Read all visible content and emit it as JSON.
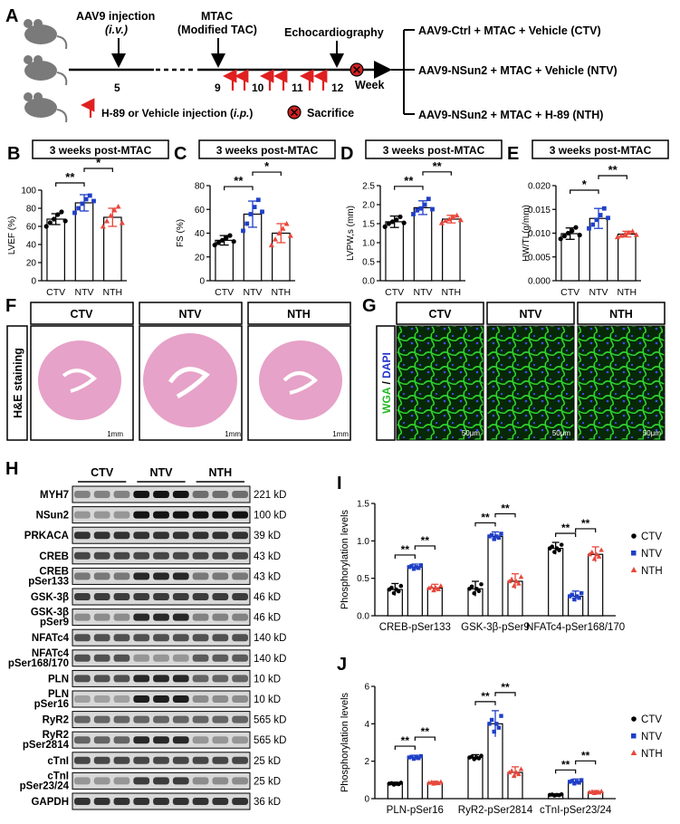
{
  "colors": {
    "ctv": "#000000",
    "ntv": "#1f3fc8",
    "nth": "#e8473b",
    "arrow_red": "#e02020",
    "wga": "#22b822",
    "dapi": "#2233cc",
    "he": "#e6a2c8"
  },
  "panelA": {
    "label": "A",
    "inj_title": "AAV9 injection",
    "inj_route": "(i.v.)",
    "mtac_title": "MTAC",
    "mtac_sub": "(Modified TAC)",
    "echo_title": "Echocardiography",
    "ticks": [
      "5",
      "9",
      "10",
      "11",
      "12"
    ],
    "week": "Week",
    "legend_h89": "H-89 or Vehicle injection (i.p.)",
    "legend_sac": "Sacrifice",
    "groups": [
      "AAV9-Ctrl + MTAC + Vehicle (CTV)",
      "AAV9-NSun2 + MTAC + Vehicle (NTV)",
      "AAV9-NSun2 + MTAC + H-89 (NTH)"
    ]
  },
  "chart_data": [
    {
      "id": "B",
      "type": "bar",
      "title": "3 weeks post-MTAC",
      "ylabel": "LVEF (%)",
      "categories": [
        "CTV",
        "NTV",
        "NTH"
      ],
      "values": [
        68,
        86,
        70
      ],
      "errors": [
        6,
        9,
        10
      ],
      "ylim": [
        0,
        100
      ],
      "yticks": [
        "0",
        "20",
        "40",
        "60",
        "80",
        "100"
      ],
      "sig": [
        "**",
        "*"
      ],
      "points": [
        [
          60,
          64,
          68,
          73,
          76,
          66
        ],
        [
          75,
          80,
          85,
          90,
          94,
          88
        ],
        [
          60,
          66,
          72,
          78,
          82,
          64
        ]
      ]
    },
    {
      "id": "C",
      "type": "bar",
      "title": "3 weeks post-MTAC",
      "ylabel": "FS (%)",
      "categories": [
        "CTV",
        "NTV",
        "NTH"
      ],
      "values": [
        34,
        56,
        40
      ],
      "errors": [
        4,
        11,
        8
      ],
      "ylim": [
        0,
        80
      ],
      "yticks": [
        "0",
        "20",
        "40",
        "60",
        "80"
      ],
      "sig": [
        "**",
        "*"
      ],
      "points": [
        [
          30,
          32,
          34,
          36,
          38,
          33
        ],
        [
          42,
          48,
          56,
          62,
          68,
          58
        ],
        [
          30,
          35,
          40,
          44,
          48,
          38
        ]
      ]
    },
    {
      "id": "D",
      "type": "bar",
      "title": "3 weeks post-MTAC",
      "ylabel": "LVPW,s (mm)",
      "categories": [
        "CTV",
        "NTV",
        "NTH"
      ],
      "values": [
        1.55,
        1.92,
        1.62
      ],
      "errors": [
        0.15,
        0.18,
        0.1
      ],
      "ylim": [
        0,
        2.5
      ],
      "yticks": [
        "0.0",
        "0.5",
        "1.0",
        "1.5",
        "2.0",
        "2.5"
      ],
      "sig": [
        "**",
        "**"
      ],
      "points": [
        [
          1.42,
          1.5,
          1.55,
          1.6,
          1.68,
          1.52
        ],
        [
          1.75,
          1.85,
          1.9,
          2.0,
          2.15,
          1.88
        ],
        [
          1.52,
          1.58,
          1.62,
          1.68,
          1.72,
          1.6
        ]
      ]
    },
    {
      "id": "E",
      "type": "bar",
      "title": "3 weeks post-MTAC",
      "ylabel": "HW/TL(g/mm)",
      "categories": [
        "CTV",
        "NTV",
        "NTH"
      ],
      "values": [
        0.0099,
        0.0131,
        0.0098
      ],
      "errors": [
        0.0012,
        0.0021,
        0.0006
      ],
      "ylim": [
        0,
        0.02
      ],
      "yticks": [
        "0.000",
        "0.005",
        "0.010",
        "0.015",
        "0.020"
      ],
      "sig": [
        "*",
        "**"
      ],
      "points": [
        [
          0.0088,
          0.0094,
          0.01,
          0.0105,
          0.0112,
          0.0096
        ],
        [
          0.011,
          0.0118,
          0.0128,
          0.0138,
          0.0152,
          0.0132
        ],
        [
          0.0092,
          0.0095,
          0.0098,
          0.0101,
          0.0104,
          0.0097
        ]
      ]
    },
    {
      "id": "I",
      "type": "bar",
      "ylabel": "Phosphorylation levels",
      "categories": [
        "CREB-pSer133",
        "GSK-3β-pSer9",
        "NFATc4-pSer168/170"
      ],
      "series": [
        {
          "name": "CTV",
          "values": [
            0.35,
            0.36,
            0.9
          ],
          "errors": [
            0.08,
            0.1,
            0.08
          ]
        },
        {
          "name": "NTV",
          "values": [
            0.65,
            1.06,
            0.26
          ],
          "errors": [
            0.04,
            0.06,
            0.07
          ]
        },
        {
          "name": "NTH",
          "values": [
            0.37,
            0.46,
            0.82
          ],
          "errors": [
            0.05,
            0.1,
            0.1
          ]
        }
      ],
      "ylim": [
        0,
        1.5
      ],
      "yticks": [
        "0.0",
        "0.5",
        "1.0",
        "1.5"
      ],
      "sig": [
        "**",
        "**",
        "**",
        "**",
        "**",
        "**"
      ]
    },
    {
      "id": "J",
      "type": "bar",
      "ylabel": "Phosphorylation levels",
      "categories": [
        "PLN-pSer16",
        "RyR2-pSer2814",
        "cTnI-pSer23/24"
      ],
      "series": [
        {
          "name": "CTV",
          "values": [
            0.8,
            2.2,
            0.2
          ],
          "errors": [
            0.08,
            0.15,
            0.05
          ]
        },
        {
          "name": "NTV",
          "values": [
            2.2,
            4.0,
            0.9
          ],
          "errors": [
            0.12,
            0.7,
            0.15
          ]
        },
        {
          "name": "NTH",
          "values": [
            0.85,
            1.4,
            0.35
          ],
          "errors": [
            0.08,
            0.3,
            0.08
          ]
        }
      ],
      "ylim": [
        0,
        6
      ],
      "yticks": [
        "0",
        "2",
        "4",
        "6"
      ],
      "sig": [
        "**",
        "**",
        "**",
        "**",
        "**",
        "**"
      ]
    }
  ],
  "panelF": {
    "label": "F",
    "side": "H&E staining",
    "groups": [
      "CTV",
      "NTV",
      "NTH"
    ],
    "scale": "1mm"
  },
  "panelG": {
    "label": "G",
    "side_wga": "WGA",
    "side_sep": " / ",
    "side_dapi": "DAPI",
    "groups": [
      "CTV",
      "NTV",
      "NTH"
    ],
    "scale": "50μm"
  },
  "panelH": {
    "label": "H",
    "groups": [
      "CTV",
      "NTV",
      "NTH"
    ],
    "rows": [
      {
        "name": "MYH7",
        "kd": "221 kD"
      },
      {
        "name": "NSun2",
        "kd": "100 kD"
      },
      {
        "name": "PRKACA",
        "kd": "39 kD"
      },
      {
        "name": "CREB",
        "kd": "43 kD"
      },
      {
        "name": "CREB",
        "name2": "pSer133",
        "kd": "43 kD"
      },
      {
        "name": "GSK-3β",
        "kd": "46 kD"
      },
      {
        "name": "GSK-3β",
        "name2": "pSer9",
        "kd": "46 kD"
      },
      {
        "name": "NFATc4",
        "kd": "140 kD"
      },
      {
        "name": "NFATc4",
        "name2": "pSer168/170",
        "kd": "140 kD"
      },
      {
        "name": "PLN",
        "kd": "10 kD"
      },
      {
        "name": "PLN",
        "name2": "pSer16",
        "kd": "10 kD"
      },
      {
        "name": "RyR2",
        "kd": "565 kD"
      },
      {
        "name": "RyR2",
        "name2": "pSer2814",
        "kd": "565 kD"
      },
      {
        "name": "cTnI",
        "kd": "25 kD"
      },
      {
        "name": "cTnI",
        "name2": "pSer23/24",
        "kd": "25 kD"
      },
      {
        "name": "GAPDH",
        "kd": "36 kD"
      }
    ]
  },
  "labels": {
    "I": "I",
    "J": "J",
    "B": "B",
    "C": "C",
    "D": "D",
    "E": "E"
  }
}
